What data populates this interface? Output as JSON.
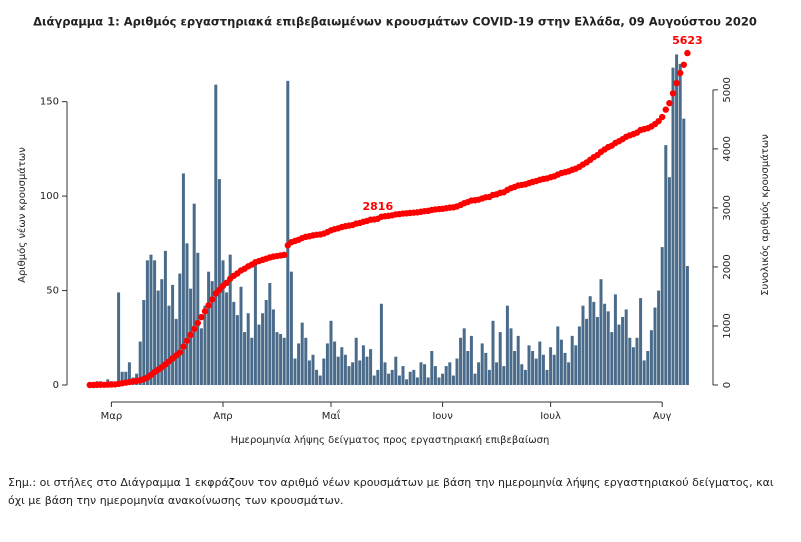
{
  "chart_data": {
    "type": "bar",
    "title": "Διάγραμμα 1: Αριθμός εργαστηριακά επιβεβαιωμένων κρουσμάτων COVID-19 στην Ελλάδα, 09 Αυγούστου 2020",
    "x_label": "Ημερομηνία λήψης δείγματος προς εργαστηριακή επιβεβαίωση",
    "y_label": "Αριθμός νέων κρουσμάτων",
    "y2_label": "Συνολικός αριθμός κρουσμάτων",
    "note": "Σημ.: οι στήλες στο Διάγραμμα 1 εκφράζουν τον αριθμό νέων κρουσμάτων με βάση την ημερομηνία λήψης εργαστηριακού δείγματος, και όχι με βάση την ημερομηνία ανακοίνωσης των κρουσμάτων.",
    "categories": [
      null,
      null,
      null,
      null,
      null,
      null,
      "Μαρ",
      null,
      null,
      null,
      null,
      null,
      null,
      null,
      null,
      null,
      null,
      null,
      null,
      null,
      null,
      null,
      null,
      null,
      null,
      null,
      null,
      null,
      null,
      null,
      null,
      null,
      null,
      null,
      null,
      null,
      null,
      "Απρ",
      null,
      null,
      null,
      null,
      null,
      null,
      null,
      null,
      null,
      null,
      null,
      null,
      null,
      null,
      null,
      null,
      null,
      null,
      null,
      null,
      null,
      null,
      null,
      null,
      null,
      null,
      null,
      null,
      null,
      "Μαΐ",
      null,
      null,
      null,
      null,
      null,
      null,
      null,
      null,
      null,
      null,
      null,
      null,
      null,
      null,
      null,
      null,
      null,
      null,
      null,
      null,
      null,
      null,
      null,
      null,
      null,
      null,
      null,
      null,
      null,
      null,
      "Ιουν",
      null,
      null,
      null,
      null,
      null,
      null,
      null,
      null,
      null,
      null,
      null,
      null,
      null,
      null,
      null,
      null,
      null,
      null,
      null,
      null,
      null,
      null,
      null,
      null,
      null,
      null,
      null,
      null,
      null,
      "Ιουλ",
      null,
      null,
      null,
      null,
      null,
      null,
      null,
      null,
      null,
      null,
      null,
      null,
      null,
      null,
      null,
      null,
      null,
      null,
      null,
      null,
      null,
      null,
      null,
      null,
      null,
      null,
      null,
      null,
      null,
      null,
      "Αυγ",
      null,
      null,
      null,
      null,
      null,
      null,
      null
    ],
    "ylim": [
      0,
      180
    ],
    "yticks": [
      0,
      50,
      100,
      150
    ],
    "y2lim": [
      0,
      5760
    ],
    "y2ticks": [
      0,
      1000,
      2000,
      3000,
      4000,
      5000
    ],
    "series": [
      {
        "type": "bar",
        "color": "#4a6b8a",
        "values": [
          0,
          0,
          2,
          2,
          0,
          3,
          2,
          1,
          49,
          7,
          7,
          12,
          4,
          6,
          23,
          45,
          66,
          69,
          66,
          50,
          56,
          71,
          42,
          53,
          35,
          59,
          112,
          75,
          51,
          96,
          70,
          30,
          42,
          60,
          55,
          159,
          109,
          66,
          49,
          69,
          44,
          37,
          52,
          28,
          38,
          25,
          66,
          32,
          38,
          45,
          54,
          40,
          28,
          27,
          25,
          161,
          60,
          14,
          22,
          33,
          25,
          13,
          16,
          8,
          5,
          14,
          22,
          34,
          23,
          15,
          20,
          16,
          10,
          12,
          25,
          13,
          21,
          15,
          19,
          5,
          8,
          43,
          12,
          6,
          8,
          15,
          5,
          10,
          3,
          7,
          8,
          4,
          12,
          11,
          4,
          18,
          10,
          4,
          6,
          10,
          12,
          5,
          14,
          25,
          30,
          18,
          26,
          6,
          12,
          22,
          17,
          8,
          34,
          12,
          28,
          10,
          42,
          30,
          18,
          26,
          11,
          8,
          21,
          18,
          14,
          23,
          16,
          8,
          20,
          16,
          31,
          24,
          17,
          12,
          26,
          21,
          31,
          42,
          35,
          47,
          44,
          36,
          56,
          43,
          39,
          28,
          48,
          32,
          36,
          40,
          25,
          20,
          25,
          46,
          13,
          18,
          29,
          41,
          50,
          73,
          127,
          110,
          168,
          175,
          170,
          141,
          63
        ]
      },
      {
        "type": "line",
        "axis": "y2",
        "color": "#ff0000",
        "values": [
          0,
          0,
          2,
          4,
          4,
          7,
          9,
          10,
          20,
          30,
          40,
          50,
          60,
          70,
          80,
          100,
          130,
          170,
          220,
          260,
          300,
          350,
          400,
          450,
          500,
          550,
          650,
          750,
          850,
          950,
          1050,
          1150,
          1250,
          1350,
          1450,
          1550,
          1612,
          1680,
          1730,
          1800,
          1850,
          1890,
          1940,
          1970,
          2010,
          2040,
          2080,
          2100,
          2120,
          2140,
          2160,
          2175,
          2185,
          2195,
          2205,
          2366,
          2420,
          2440,
          2460,
          2490,
          2510,
          2520,
          2535,
          2545,
          2550,
          2565,
          2590,
          2620,
          2640,
          2655,
          2675,
          2690,
          2700,
          2710,
          2735,
          2745,
          2765,
          2780,
          2800,
          2805,
          2816,
          2850,
          2860,
          2865,
          2875,
          2890,
          2895,
          2905,
          2908,
          2915,
          2920,
          2925,
          2935,
          2945,
          2950,
          2965,
          2975,
          2980,
          2985,
          2995,
          3005,
          3010,
          3025,
          3050,
          3080,
          3100,
          3125,
          3130,
          3140,
          3160,
          3180,
          3185,
          3220,
          3230,
          3255,
          3265,
          3305,
          3335,
          3355,
          3380,
          3390,
          3400,
          3420,
          3440,
          3455,
          3475,
          3490,
          3500,
          3520,
          3535,
          3565,
          3590,
          3605,
          3620,
          3645,
          3665,
          3695,
          3735,
          3770,
          3815,
          3860,
          3895,
          3950,
          3990,
          4030,
          4055,
          4100,
          4130,
          4165,
          4205,
          4230,
          4250,
          4275,
          4320,
          4335,
          4350,
          4380,
          4420,
          4470,
          4540,
          4665,
          4775,
          4940,
          5115,
          5285,
          5425,
          5623
        ],
        "labeled": [
          80,
          166
        ]
      }
    ]
  }
}
